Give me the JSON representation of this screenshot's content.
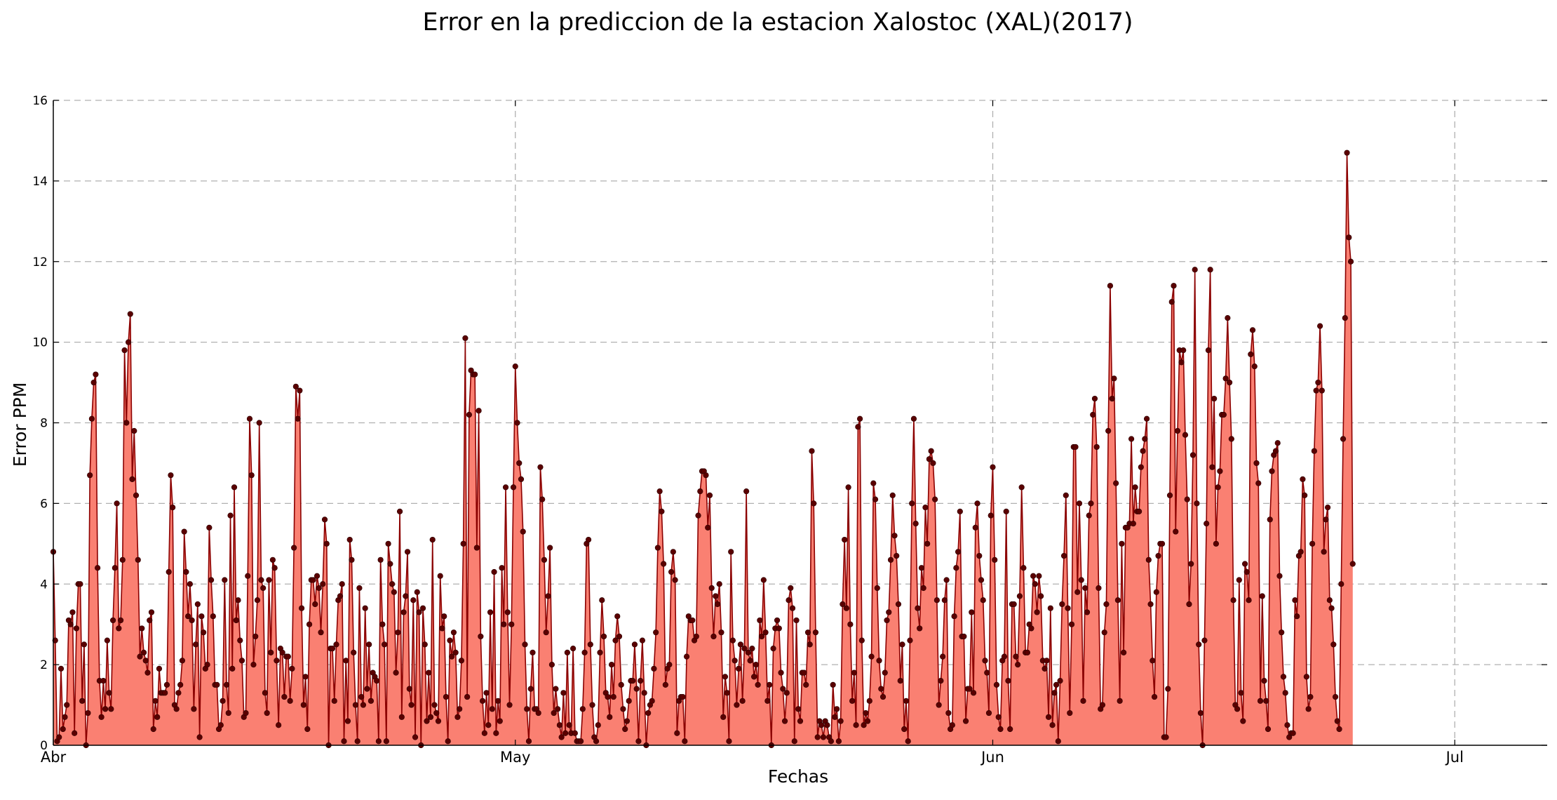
{
  "chart_data": {
    "type": "area",
    "title": "Error en la prediccion de la estacion Xalostoc (XAL)(2017)",
    "xlabel": "Fechas",
    "ylabel": "Error PPM",
    "ylim": [
      0,
      16
    ],
    "yticks": [
      0,
      2,
      4,
      6,
      8,
      10,
      12,
      14,
      16
    ],
    "xlim": [
      "2017-04-01",
      "2017-07-07"
    ],
    "xticks": [
      {
        "date": "2017-04-01",
        "label": "Abr"
      },
      {
        "date": "2017-05-01",
        "label": "May"
      },
      {
        "date": "2017-06-01",
        "label": "Jun"
      },
      {
        "date": "2017-07-01",
        "label": "Jul"
      }
    ],
    "grid": true,
    "colors": {
      "fill": "#fa8072",
      "line": "#8b0000",
      "marker": "#5a0000"
    },
    "series": [
      {
        "x_start": "2017-04-01 00:00",
        "x_step_hours": 3,
        "values": [
          4.8,
          2.6,
          0.1,
          0.2,
          1.9,
          0.4,
          0.7,
          1.0,
          3.1,
          3.0,
          3.3,
          0.3,
          2.9,
          4.0,
          4.0,
          1.1,
          2.5,
          0.0,
          0.8,
          6.7,
          8.1,
          9.0,
          9.2,
          4.4,
          1.6,
          0.7,
          1.6,
          0.9,
          2.6,
          1.3,
          0.9,
          3.1,
          4.4,
          6.0,
          2.9,
          3.1,
          4.6,
          9.8,
          8.0,
          10.0,
          10.7,
          6.6,
          7.8,
          6.2,
          4.6,
          2.2,
          2.9,
          2.3,
          2.1,
          1.8,
          3.1,
          3.3,
          0.4,
          1.1,
          0.7,
          1.9,
          1.3,
          1.3,
          1.3,
          1.5,
          4.3,
          6.7,
          5.9,
          1.0,
          0.9,
          1.3,
          1.5,
          2.1,
          5.3,
          4.3,
          3.2,
          4.0,
          3.1,
          0.9,
          2.5,
          3.5,
          0.2,
          3.2,
          2.8,
          1.9,
          2.0,
          5.4,
          4.1,
          3.2,
          1.5,
          1.5,
          0.4,
          0.5,
          1.1,
          4.1,
          1.5,
          0.8,
          5.7,
          1.9,
          6.4,
          3.1,
          3.6,
          2.6,
          2.1,
          0.7,
          0.8,
          4.2,
          8.1,
          6.7,
          2.0,
          2.7,
          3.6,
          8.0,
          4.1,
          3.9,
          1.3,
          0.8,
          4.1,
          2.3,
          4.6,
          4.4,
          2.1,
          0.5,
          2.4,
          2.3,
          1.2,
          2.2,
          2.2,
          1.1,
          1.9,
          4.9,
          8.9,
          8.1,
          8.8,
          3.4,
          1.0,
          1.7,
          0.4,
          3.0,
          4.1,
          4.1,
          3.5,
          4.2,
          3.9,
          2.8,
          4.0,
          5.6,
          5.0,
          0.0,
          2.4,
          2.4,
          1.1,
          2.5,
          3.6,
          3.7,
          4.0,
          0.1,
          2.1,
          0.6,
          5.1,
          4.6,
          2.3,
          1.0,
          0.1,
          3.9,
          1.2,
          1.0,
          3.4,
          1.4,
          2.5,
          1.1,
          1.8,
          1.7,
          1.6,
          0.1,
          4.6,
          3.0,
          2.5,
          0.1,
          5.0,
          4.5,
          4.0,
          3.8,
          1.8,
          2.8,
          5.8,
          0.7,
          3.3,
          3.7,
          4.8,
          1.4,
          1.0,
          3.6,
          0.2,
          3.8,
          3.3,
          0.0,
          3.4,
          2.5,
          0.6,
          1.8,
          0.7,
          5.1,
          1.0,
          0.8,
          0.6,
          4.2,
          2.9,
          3.2,
          1.2,
          0.1,
          2.6,
          2.2,
          2.8,
          2.3,
          0.7,
          0.9,
          2.1,
          5.0,
          10.1,
          1.2,
          8.2,
          9.3,
          9.2,
          9.2,
          4.9,
          8.3,
          2.7,
          1.1,
          0.3,
          1.3,
          0.5,
          3.3,
          0.9,
          4.3,
          0.3,
          1.1,
          0.6,
          4.4,
          3.0,
          6.4,
          3.3,
          1.0,
          3.0,
          6.4,
          9.4,
          8.0,
          7.0,
          6.6,
          5.3,
          2.5,
          0.9,
          0.1,
          1.4,
          2.3,
          0.9,
          0.9,
          0.8,
          6.9,
          6.1,
          4.6,
          2.8,
          3.7,
          4.9,
          2.0,
          0.8,
          1.4,
          0.9,
          0.5,
          0.2,
          1.3,
          0.3,
          2.3,
          0.5,
          0.3,
          2.4,
          0.3,
          0.1,
          0.1,
          0.1,
          0.9,
          2.3,
          5.0,
          5.1,
          2.5,
          1.0,
          0.2,
          0.1,
          0.5,
          2.3,
          3.6,
          2.7,
          1.3,
          1.2,
          0.7,
          2.0,
          1.2,
          2.6,
          3.2,
          2.7,
          1.5,
          0.9,
          0.4,
          0.6,
          1.1,
          1.6,
          1.6,
          2.5,
          1.4,
          0.1,
          1.6,
          2.6,
          1.3,
          0.0,
          0.8,
          1.0,
          1.1,
          1.9,
          2.8,
          4.9,
          6.3,
          5.8,
          4.5,
          1.5,
          1.9,
          2.0,
          4.3,
          4.8,
          4.1,
          0.3,
          1.1,
          1.2,
          1.2,
          0.1,
          2.2,
          3.2,
          3.1,
          3.1,
          2.6,
          2.7,
          5.7,
          6.3,
          6.8,
          6.8,
          6.7,
          5.4,
          6.2,
          3.9,
          2.7,
          3.7,
          3.5,
          4.0,
          2.8,
          0.7,
          1.7,
          1.3,
          0.1,
          4.8,
          2.6,
          2.1,
          1.0,
          1.9,
          2.5,
          1.1,
          2.4,
          6.3,
          2.3,
          2.1,
          2.4,
          1.7,
          2.0,
          1.5,
          3.1,
          2.7,
          4.1,
          2.8,
          1.1,
          1.5,
          0.0,
          2.4,
          2.9,
          3.1,
          2.9,
          1.8,
          1.4,
          0.6,
          1.3,
          3.6,
          3.9,
          3.4,
          0.1,
          3.1,
          0.9,
          0.6,
          1.8,
          1.8,
          1.5,
          2.8,
          2.5,
          7.3,
          6.0,
          2.8,
          0.2,
          0.6,
          0.5,
          0.2,
          0.6,
          0.5,
          0.2,
          0.1,
          1.5,
          0.7,
          0.9,
          0.1,
          0.6,
          3.5,
          5.1,
          3.4,
          6.4,
          3.0,
          1.1,
          1.8,
          0.5,
          7.9,
          8.1,
          2.6,
          0.5,
          0.8,
          0.6,
          1.1,
          2.2,
          6.5,
          6.1,
          3.9,
          2.1,
          1.4,
          1.2,
          1.8,
          3.1,
          3.3,
          4.6,
          6.2,
          5.2,
          4.7,
          3.5,
          1.6,
          2.5,
          0.4,
          1.1,
          0.1,
          2.6,
          6.0,
          8.1,
          5.5,
          3.4,
          2.9,
          4.4,
          3.9,
          5.9,
          5.0,
          7.1,
          7.3,
          7.0,
          6.1,
          3.6,
          1.0,
          1.6,
          2.2,
          3.6,
          4.1,
          0.8,
          0.4,
          0.5,
          3.2,
          4.4,
          4.8,
          5.8,
          2.7,
          2.7,
          0.6,
          1.4,
          1.4,
          3.3,
          1.3,
          5.4,
          6.0,
          4.7,
          4.1,
          3.6,
          2.1,
          1.8,
          0.8,
          5.7,
          6.9,
          4.6,
          1.5,
          0.7,
          0.4,
          2.1,
          2.2,
          5.8,
          1.6,
          0.4,
          3.5,
          3.5,
          2.2,
          2.0,
          3.7,
          6.4,
          4.4,
          2.3,
          2.3,
          3.0,
          2.9,
          4.2,
          4.0,
          3.3,
          4.2,
          3.7,
          2.1,
          1.9,
          2.1,
          0.7,
          3.4,
          0.5,
          1.3,
          1.5,
          0.1,
          1.6,
          3.5,
          4.7,
          6.2,
          3.4,
          0.8,
          3.0,
          7.4,
          7.4,
          3.8,
          6.0,
          4.1,
          1.1,
          3.9,
          3.3,
          5.7,
          6.0,
          8.2,
          8.6,
          7.4,
          3.9,
          0.9,
          1.0,
          2.8,
          3.5,
          7.8,
          11.4,
          8.6,
          9.1,
          6.5,
          3.6,
          1.1,
          5.0,
          2.3,
          5.4,
          5.4,
          5.5,
          7.6,
          5.5,
          6.4,
          5.8,
          5.8,
          6.9,
          7.3,
          7.6,
          8.1,
          4.6,
          3.5,
          2.1,
          1.2,
          3.8,
          4.7,
          5.0,
          5.0,
          0.2,
          0.2,
          1.4,
          6.2,
          11.0,
          11.4,
          5.3,
          7.8,
          9.8,
          9.5,
          9.8,
          7.7,
          6.1,
          3.5,
          4.5,
          7.2,
          11.8,
          6.0,
          2.5,
          0.8,
          0.0,
          2.6,
          5.5,
          9.8,
          11.8,
          6.9,
          8.6,
          5.0,
          6.4,
          6.8,
          8.2,
          8.2,
          9.1,
          10.6,
          9.0,
          7.6,
          3.6,
          1.0,
          0.9,
          4.1,
          1.3,
          0.6,
          4.5,
          4.3,
          3.6,
          9.7,
          10.3,
          9.4,
          7.0,
          6.5,
          1.1,
          3.7,
          1.6,
          1.1,
          0.4,
          5.6,
          6.8,
          7.2,
          7.3,
          7.5,
          4.2,
          2.8,
          1.7,
          1.3,
          0.5,
          0.2,
          0.3,
          0.3,
          3.6,
          3.2,
          4.7,
          4.8,
          6.6,
          6.2,
          1.7,
          0.9,
          1.2,
          5.0,
          7.3,
          8.8,
          9.0,
          10.4,
          8.8,
          4.8,
          5.6,
          5.9,
          3.6,
          3.4,
          2.5,
          1.2,
          0.6,
          0.4,
          4.0,
          7.6,
          10.6,
          14.7,
          12.6,
          12.0,
          4.5
        ]
      }
    ]
  }
}
